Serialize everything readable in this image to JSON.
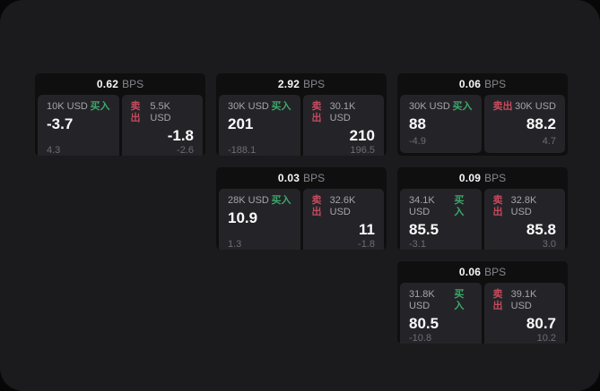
{
  "labels": {
    "bps_unit": "BPS",
    "buy": "买入",
    "sell": "卖出"
  },
  "colors": {
    "buy": "#3ca86a",
    "sell": "#c64a5e",
    "surface": "#1b1b1d",
    "card": "#0f0f10",
    "panel": "#242428"
  },
  "cards": [
    {
      "col": 1,
      "row": 1,
      "bps": "0.62",
      "buy": {
        "amount": "10K USD",
        "main": "-3.7",
        "sub": "4.3"
      },
      "sell": {
        "amount": "5.5K USD",
        "main": "-1.8",
        "sub": "-2.6"
      }
    },
    {
      "col": 2,
      "row": 1,
      "bps": "2.92",
      "buy": {
        "amount": "30K USD",
        "main": "201",
        "sub": "-188.1"
      },
      "sell": {
        "amount": "30.1K USD",
        "main": "210",
        "sub": "196.5"
      }
    },
    {
      "col": 3,
      "row": 1,
      "bps": "0.06",
      "buy": {
        "amount": "30K USD",
        "main": "88",
        "sub": "-4.9"
      },
      "sell": {
        "amount": "30K USD",
        "main": "88.2",
        "sub": "4.7"
      }
    },
    {
      "col": 2,
      "row": 2,
      "bps": "0.03",
      "buy": {
        "amount": "28K USD",
        "main": "10.9",
        "sub": "1.3"
      },
      "sell": {
        "amount": "32.6K USD",
        "main": "11",
        "sub": "-1.8"
      }
    },
    {
      "col": 3,
      "row": 2,
      "bps": "0.09",
      "buy": {
        "amount": "34.1K USD",
        "main": "85.5",
        "sub": "-3.1"
      },
      "sell": {
        "amount": "32.8K USD",
        "main": "85.8",
        "sub": "3.0"
      }
    },
    {
      "col": 3,
      "row": 3,
      "bps": "0.06",
      "buy": {
        "amount": "31.8K USD",
        "main": "80.5",
        "sub": "-10.8"
      },
      "sell": {
        "amount": "39.1K USD",
        "main": "80.7",
        "sub": "10.2"
      }
    }
  ]
}
